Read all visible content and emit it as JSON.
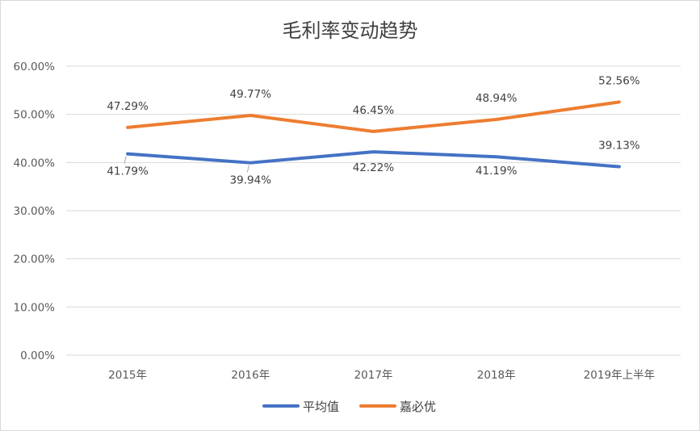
{
  "chart_data": {
    "type": "line",
    "title": "毛利率变动趋势",
    "categories": [
      "2015年",
      "2016年",
      "2017年",
      "2018年",
      "2019年上半年"
    ],
    "ylim": [
      0,
      60
    ],
    "yticks": [
      "0.00%",
      "10.00%",
      "20.00%",
      "30.00%",
      "40.00%",
      "50.00%",
      "60.00%"
    ],
    "grid": true,
    "legend_position": "bottom",
    "series": [
      {
        "name": "平均值",
        "color": "#4472c4",
        "values": [
          41.79,
          39.94,
          42.22,
          41.19,
          39.13
        ],
        "labels": [
          "41.79%",
          "39.94%",
          "42.22%",
          "41.19%",
          "39.13%"
        ]
      },
      {
        "name": "嘉必优",
        "color": "#ed7d31",
        "values": [
          47.29,
          49.77,
          46.45,
          48.94,
          52.56
        ],
        "labels": [
          "47.29%",
          "49.77%",
          "46.45%",
          "48.94%",
          "52.56%"
        ]
      }
    ]
  }
}
